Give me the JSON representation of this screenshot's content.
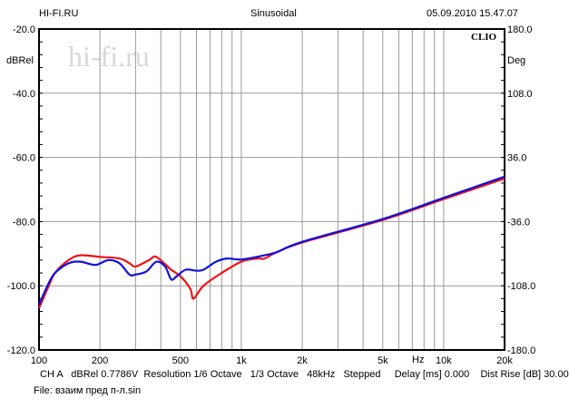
{
  "header": {
    "left": "HI-FI.RU",
    "center": "Sinusoidal",
    "right": "05.09.2010 15.47.07"
  },
  "watermark": "hi-fi.ru",
  "brand": "CLIO",
  "footer": {
    "info": "CH A   dBRel 0.7786V  Resolution 1/6 Octave   1/3 Octave   48kHz   Stepped     Delay [ms] 0.000    Dist Rise [dB] 30.00",
    "file": "File: взаим пред п-л.sin"
  },
  "colors": {
    "red": "#ee1111",
    "blue": "#1111dd",
    "grid": "#888888"
  },
  "chart_data": {
    "type": "line",
    "title": "Sinusoidal",
    "xlabel": "Hz",
    "ylabel": "dBRel",
    "y2label": "Deg",
    "xscale": "log",
    "xlim": [
      100,
      20000
    ],
    "ylim": [
      -120,
      -20
    ],
    "y2lim": [
      -180,
      180
    ],
    "x_ticks": [
      {
        "v": 100,
        "l": "100"
      },
      {
        "v": 200,
        "l": "200"
      },
      {
        "v": 500,
        "l": "500"
      },
      {
        "v": 1000,
        "l": "1k"
      },
      {
        "v": 2000,
        "l": "2k"
      },
      {
        "v": 5000,
        "l": "5k"
      },
      {
        "v": 10000,
        "l": "10k"
      },
      {
        "v": 20000,
        "l": "20k"
      }
    ],
    "y_ticks": [
      "-20.0",
      "-40.0",
      "-60.0",
      "-80.0",
      "-100.0",
      "-120.0"
    ],
    "y2_ticks": [
      "180.0",
      "108.0",
      "36.0",
      "-36.0",
      "-108.0",
      "-180.0"
    ],
    "grid": true,
    "series": [
      {
        "name": "red",
        "color": "#ee1111",
        "x": [
          100,
          110,
          120,
          140,
          160,
          200,
          250,
          280,
          300,
          350,
          380,
          450,
          500,
          560,
          580,
          650,
          800,
          1000,
          1200,
          1300,
          1500,
          2000,
          5000,
          10000,
          20000
        ],
        "y": [
          -107,
          -101,
          -96,
          -92,
          -90.5,
          -91,
          -91.5,
          -93,
          -94,
          -92,
          -91,
          -95,
          -97,
          -101,
          -104,
          -100,
          -96,
          -92.5,
          -91.5,
          -91.5,
          -89.5,
          -86.5,
          -79.5,
          -73,
          -66.6
        ]
      },
      {
        "name": "blue",
        "color": "#1111dd",
        "x": [
          100,
          110,
          120,
          140,
          160,
          190,
          220,
          250,
          280,
          300,
          340,
          380,
          420,
          450,
          480,
          530,
          600,
          650,
          750,
          850,
          1000,
          1300,
          1500,
          2000,
          5000,
          10000,
          20000
        ],
        "y": [
          -106,
          -100,
          -96,
          -93,
          -92.5,
          -93.5,
          -92,
          -93,
          -96.5,
          -96.5,
          -95.5,
          -92.5,
          -94,
          -98,
          -97,
          -95,
          -95.3,
          -95,
          -92.5,
          -91.5,
          -91.8,
          -90.5,
          -89.5,
          -86.3,
          -79.2,
          -72.6,
          -66
        ]
      }
    ]
  }
}
